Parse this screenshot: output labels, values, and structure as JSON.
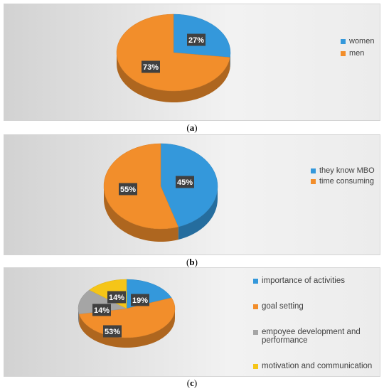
{
  "chart_data": [
    {
      "type": "pie",
      "categories": [
        "women",
        "men"
      ],
      "values": [
        27,
        73
      ],
      "labels": [
        "27%",
        "73%"
      ],
      "colors": [
        "#3498db",
        "#f28e2b"
      ],
      "legend_position": "right"
    },
    {
      "type": "pie",
      "categories": [
        "they know MBO",
        "time consuming"
      ],
      "values": [
        45,
        55
      ],
      "labels": [
        "45%",
        "55%"
      ],
      "colors": [
        "#3498db",
        "#f28e2b"
      ],
      "legend_position": "right"
    },
    {
      "type": "pie",
      "categories": [
        "importance of activities",
        "goal setting",
        "empoyee development and performance",
        "motivation and communication"
      ],
      "values": [
        19,
        53,
        14,
        14
      ],
      "labels": [
        "19%",
        "53%",
        "14%",
        "14%"
      ],
      "colors": [
        "#3498db",
        "#f28e2b",
        "#a5a5a5",
        "#f5c518"
      ],
      "legend_position": "right"
    }
  ],
  "captions": [
    {
      "open": "(",
      "letter": "a",
      "close": ")"
    },
    {
      "open": "(",
      "letter": "b",
      "close": ")"
    },
    {
      "open": "(",
      "letter": "c",
      "close": ")"
    }
  ]
}
